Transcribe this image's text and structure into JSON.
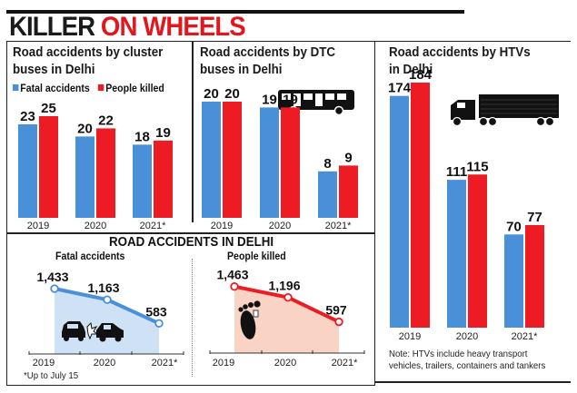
{
  "headline": {
    "part1": "KILLER",
    "part2": "ON WHEELS"
  },
  "colors": {
    "fatal": "#4a90d9",
    "killed": "#ed1c24",
    "fatal_fill": "#cfe1f5",
    "killed_fill": "#f9d3c4"
  },
  "legend": {
    "fatal": "Fatal accidents",
    "killed": "People killed"
  },
  "footnote": "*Up to July 15",
  "htv_note": [
    "Note: HTVs include heavy transport",
    "vehicles, trailers, containers and tankers"
  ],
  "chart_data": [
    {
      "type": "bar",
      "title": "Road accidents by cluster buses in Delhi",
      "title_lines": [
        "Road accidents by cluster",
        "buses in Delhi"
      ],
      "categories": [
        "2019",
        "2020",
        "2021*"
      ],
      "series": [
        {
          "name": "Fatal accidents",
          "values": [
            23,
            20,
            18
          ]
        },
        {
          "name": "People killed",
          "values": [
            25,
            22,
            19
          ]
        }
      ],
      "ylim": [
        0,
        30
      ]
    },
    {
      "type": "bar",
      "title": "Road accidents by DTC buses in Delhi",
      "title_lines": [
        "Road accidents by DTC",
        "buses in Delhi"
      ],
      "categories": [
        "2019",
        "2020",
        "2021*"
      ],
      "series": [
        {
          "name": "Fatal accidents",
          "values": [
            20,
            19,
            8
          ]
        },
        {
          "name": "People killed",
          "values": [
            20,
            19,
            9
          ]
        }
      ],
      "ylim": [
        0,
        28
      ]
    },
    {
      "type": "bar",
      "title": "Road accidents by HTVs in Delhi",
      "title_lines": [
        "Road accidents by HTVs",
        "in Delhi"
      ],
      "categories": [
        "2019",
        "2020",
        "2021*"
      ],
      "series": [
        {
          "name": "Fatal accidents",
          "values": [
            174,
            111,
            70
          ]
        },
        {
          "name": "People killed",
          "values": [
            184,
            115,
            77
          ]
        }
      ],
      "ylim": [
        0,
        200
      ]
    },
    {
      "type": "area",
      "title": "ROAD ACCIDENTS IN DELHI",
      "subtitle": "Fatal accidents",
      "x": [
        "2019",
        "2020",
        "2021*"
      ],
      "values": [
        1433,
        1163,
        583
      ],
      "labels": [
        "1,433",
        "1,163",
        "583"
      ],
      "ylim": [
        0,
        1600
      ]
    },
    {
      "type": "area",
      "title": "ROAD ACCIDENTS IN DELHI",
      "subtitle": "People killed",
      "x": [
        "2019",
        "2020",
        "2021*"
      ],
      "values": [
        1463,
        1196,
        597
      ],
      "labels": [
        "1,463",
        "1,196",
        "597"
      ],
      "ylim": [
        0,
        1600
      ]
    }
  ],
  "section_title": "ROAD ACCIDENTS IN DELHI"
}
